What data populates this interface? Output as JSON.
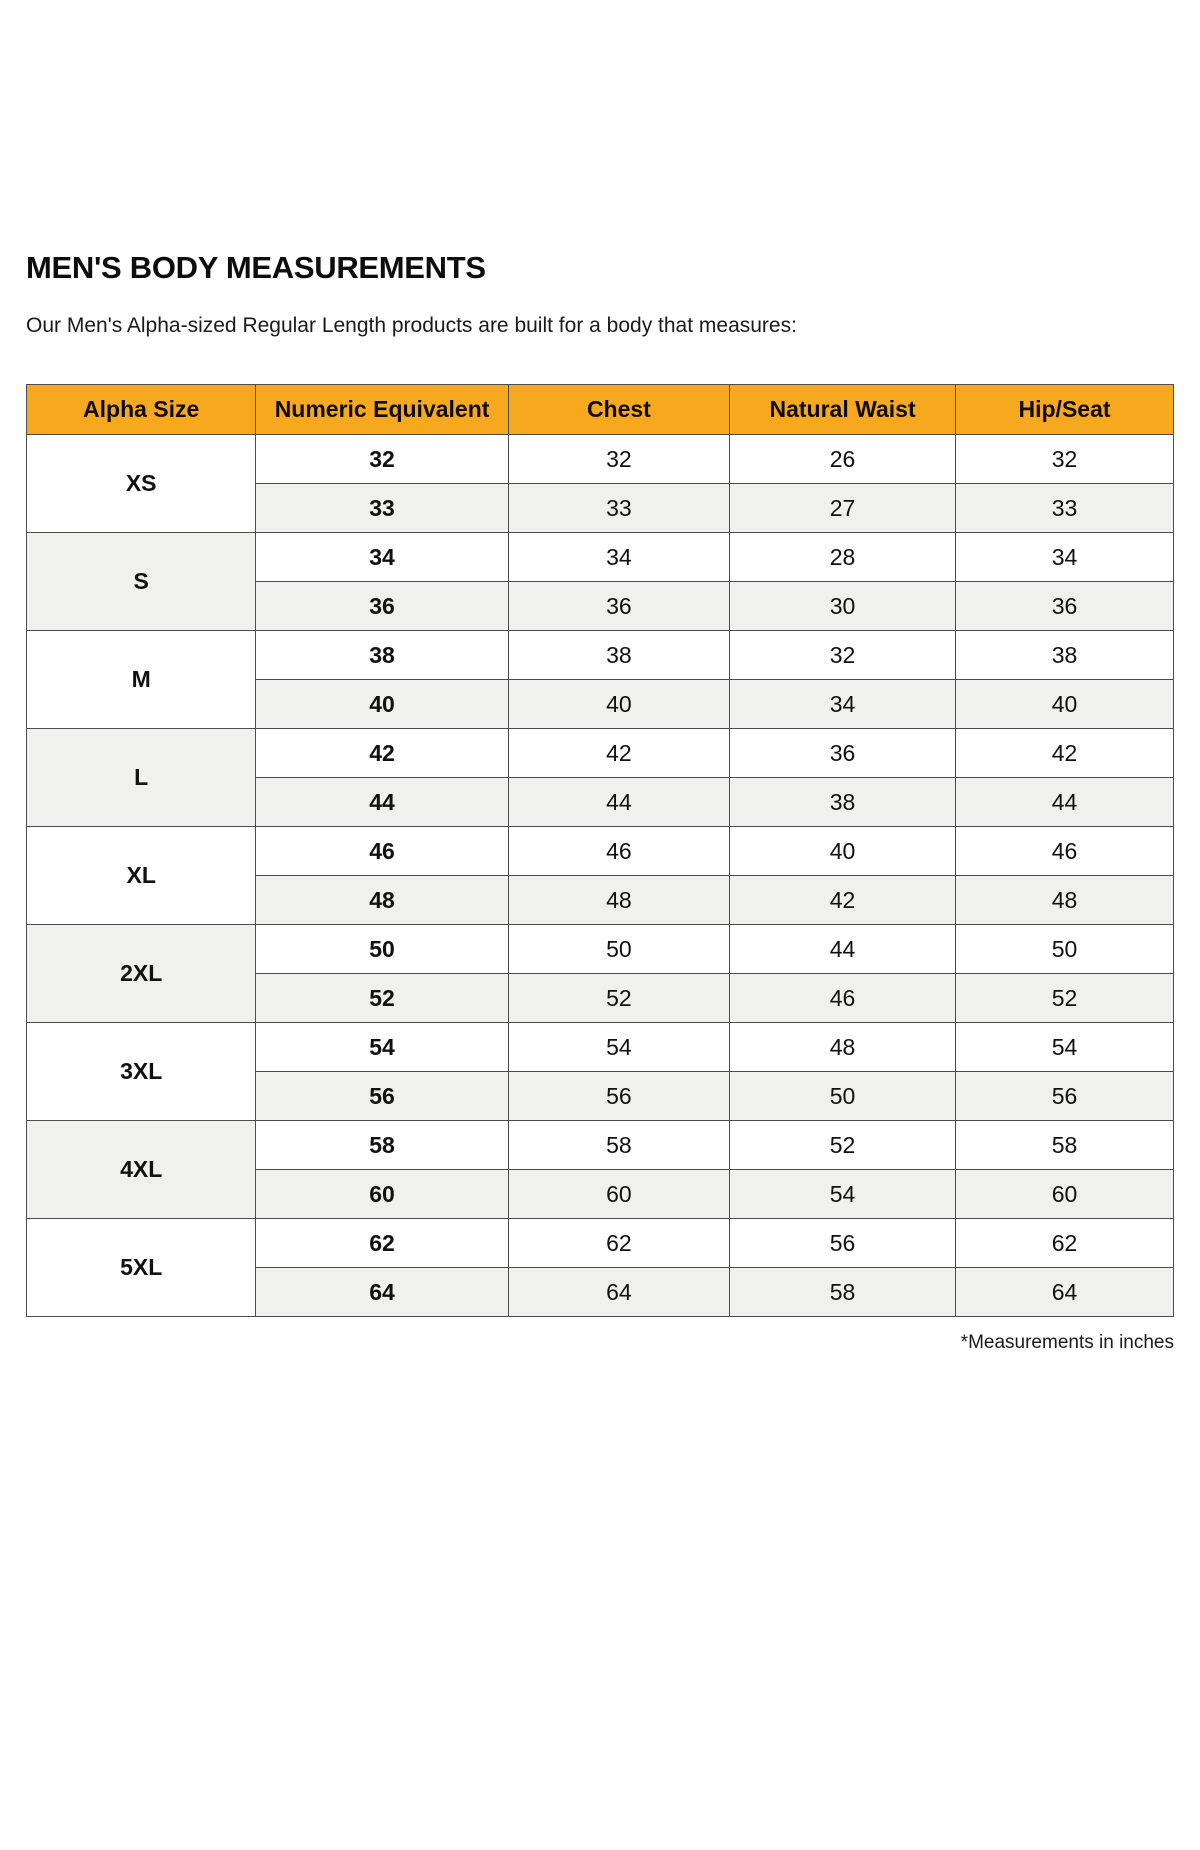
{
  "page": {
    "title": "MEN'S BODY MEASUREMENTS",
    "subtitle": "Our Men's Alpha-sized Regular Length products are built for a body that measures:",
    "footnote": "*Measurements in inches"
  },
  "colors": {
    "header_bg": "#F6A81F",
    "row_alt_bg": "#F0F0EF",
    "border": "#4D4D4D"
  },
  "chart_data": {
    "type": "table",
    "title": "MEN'S BODY MEASUREMENTS",
    "subtitle": "Our Men's Alpha-sized Regular Length products are built for a body that measures:",
    "footnote": "*Measurements in inches",
    "units": "inches",
    "columns": [
      "Alpha Size",
      "Numeric Equivalent",
      "Chest",
      "Natural Waist",
      "Hip/Seat"
    ],
    "groups": [
      {
        "alpha_size": "XS",
        "rows": [
          [
            "32",
            "32",
            "26",
            "32"
          ],
          [
            "33",
            "33",
            "27",
            "33"
          ]
        ]
      },
      {
        "alpha_size": "S",
        "rows": [
          [
            "34",
            "34",
            "28",
            "34"
          ],
          [
            "36",
            "36",
            "30",
            "36"
          ]
        ]
      },
      {
        "alpha_size": "M",
        "rows": [
          [
            "38",
            "38",
            "32",
            "38"
          ],
          [
            "40",
            "40",
            "34",
            "40"
          ]
        ]
      },
      {
        "alpha_size": "L",
        "rows": [
          [
            "42",
            "42",
            "36",
            "42"
          ],
          [
            "44",
            "44",
            "38",
            "44"
          ]
        ]
      },
      {
        "alpha_size": "XL",
        "rows": [
          [
            "46",
            "46",
            "40",
            "46"
          ],
          [
            "48",
            "48",
            "42",
            "48"
          ]
        ]
      },
      {
        "alpha_size": "2XL",
        "rows": [
          [
            "50",
            "50",
            "44",
            "50"
          ],
          [
            "52",
            "52",
            "46",
            "52"
          ]
        ]
      },
      {
        "alpha_size": "3XL",
        "rows": [
          [
            "54",
            "54",
            "48",
            "54"
          ],
          [
            "56",
            "56",
            "50",
            "56"
          ]
        ]
      },
      {
        "alpha_size": "4XL",
        "rows": [
          [
            "58",
            "58",
            "52",
            "58"
          ],
          [
            "60",
            "60",
            "54",
            "60"
          ]
        ]
      },
      {
        "alpha_size": "5XL",
        "rows": [
          [
            "62",
            "62",
            "56",
            "62"
          ],
          [
            "64",
            "64",
            "58",
            "64"
          ]
        ]
      }
    ]
  }
}
